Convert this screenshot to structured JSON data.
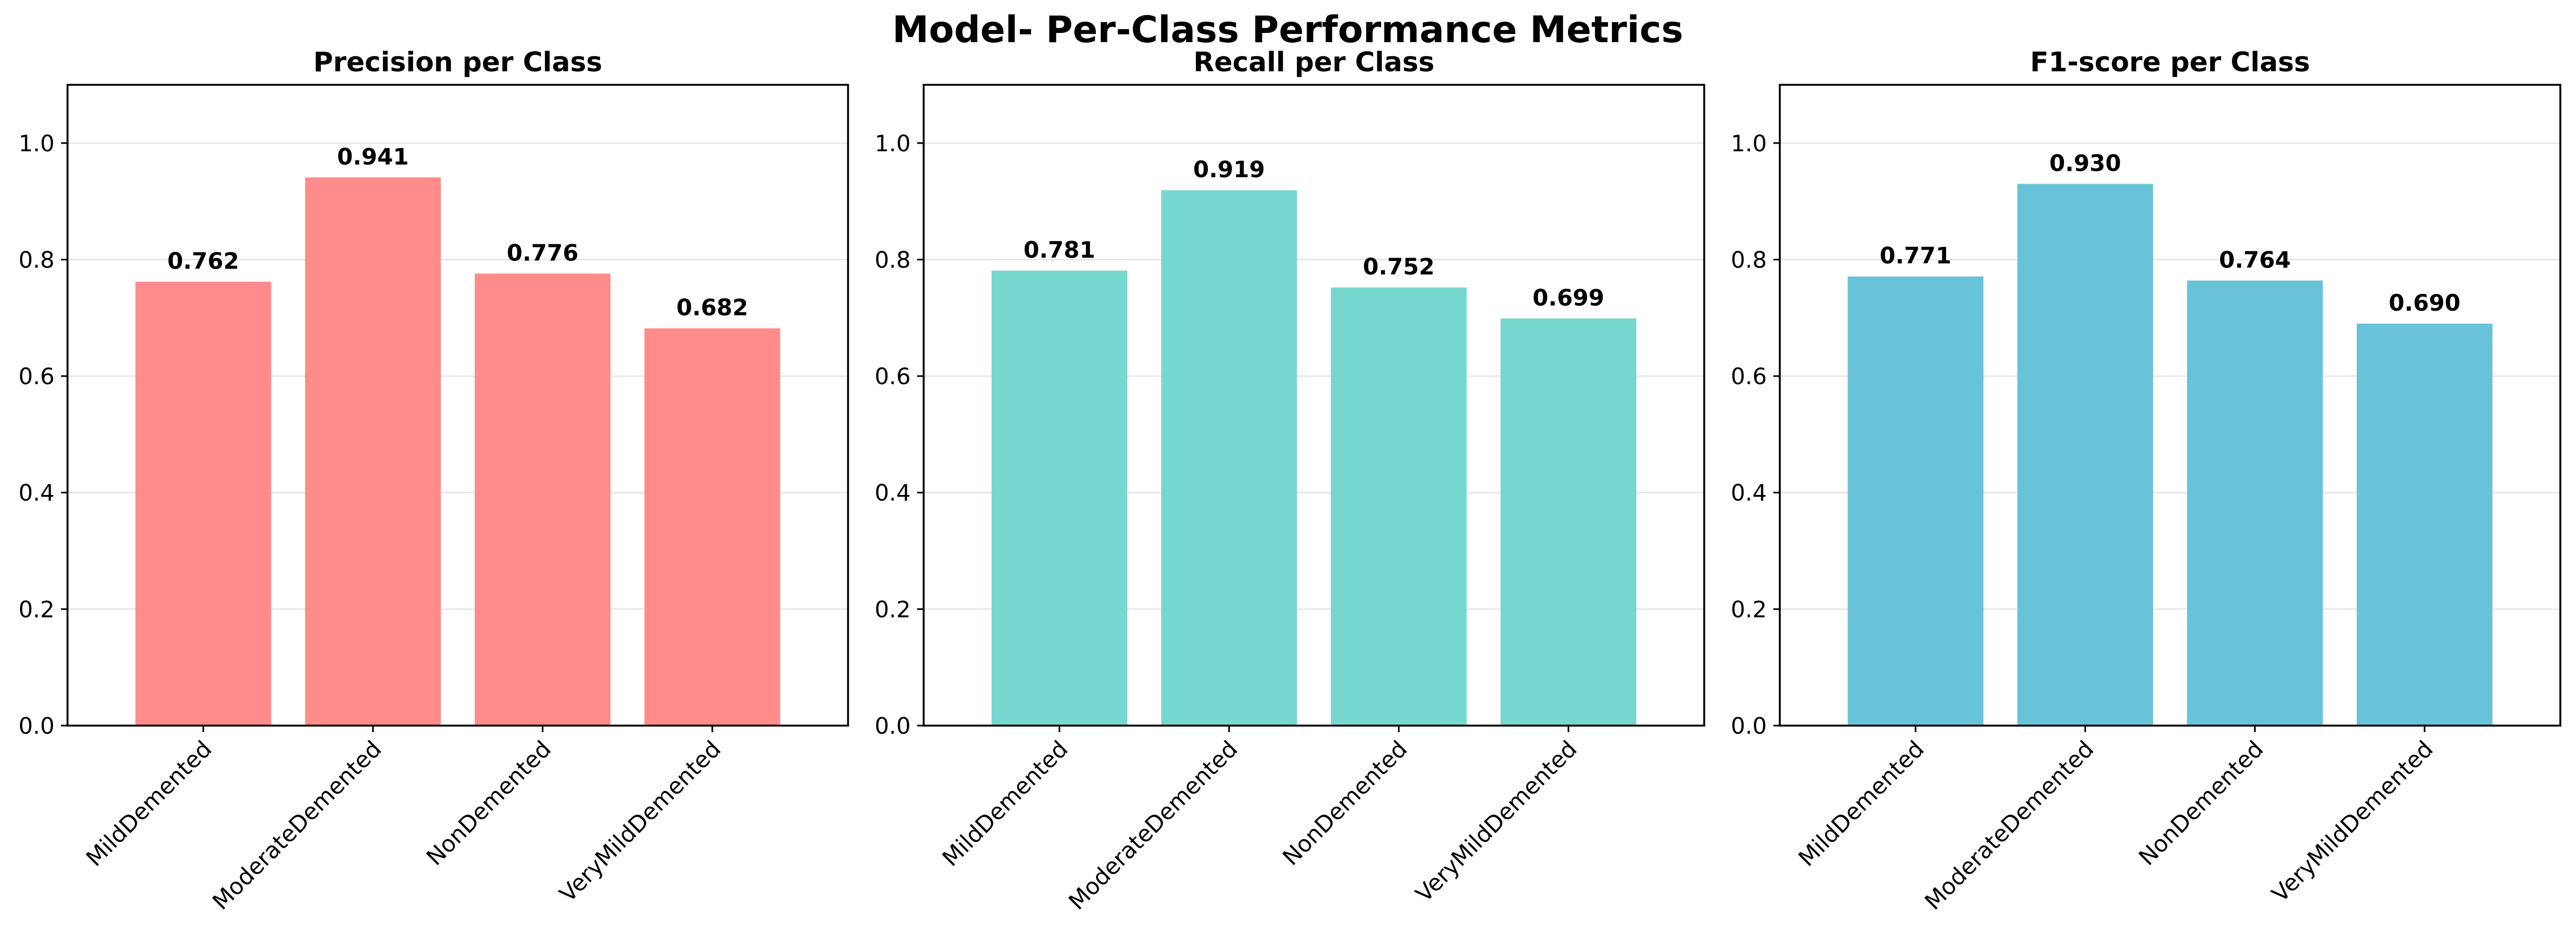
{
  "figure": {
    "title": "Model- Per-Class Performance Metrics"
  },
  "chart_data": [
    {
      "type": "bar",
      "title": "Precision per Class",
      "xlabel": "",
      "ylabel": "",
      "categories": [
        "MildDemented",
        "ModerateDemented",
        "NonDemented",
        "VeryMildDemented"
      ],
      "values": [
        0.762,
        0.941,
        0.776,
        0.682
      ],
      "value_labels": [
        "0.762",
        "0.941",
        "0.776",
        "0.682"
      ],
      "ylim": [
        0,
        1.1
      ],
      "yticks": [
        0.0,
        0.2,
        0.4,
        0.6,
        0.8,
        1.0
      ],
      "ytick_labels": [
        "0.0",
        "0.2",
        "0.4",
        "0.6",
        "0.8",
        "1.0"
      ],
      "grid": "y",
      "color": "#ff8b8b"
    },
    {
      "type": "bar",
      "title": "Recall per Class",
      "xlabel": "",
      "ylabel": "",
      "categories": [
        "MildDemented",
        "ModerateDemented",
        "NonDemented",
        "VeryMildDemented"
      ],
      "values": [
        0.781,
        0.919,
        0.752,
        0.699
      ],
      "value_labels": [
        "0.781",
        "0.919",
        "0.752",
        "0.699"
      ],
      "ylim": [
        0,
        1.1
      ],
      "yticks": [
        0.0,
        0.2,
        0.4,
        0.6,
        0.8,
        1.0
      ],
      "ytick_labels": [
        "0.0",
        "0.2",
        "0.4",
        "0.6",
        "0.8",
        "1.0"
      ],
      "grid": "y",
      "color": "#76d7cf"
    },
    {
      "type": "bar",
      "title": "F1-score per Class",
      "xlabel": "",
      "ylabel": "",
      "categories": [
        "MildDemented",
        "ModerateDemented",
        "NonDemented",
        "VeryMildDemented"
      ],
      "values": [
        0.771,
        0.93,
        0.764,
        0.69
      ],
      "value_labels": [
        "0.771",
        "0.930",
        "0.764",
        "0.690"
      ],
      "ylim": [
        0,
        1.1
      ],
      "yticks": [
        0.0,
        0.2,
        0.4,
        0.6,
        0.8,
        1.0
      ],
      "ytick_labels": [
        "0.0",
        "0.2",
        "0.4",
        "0.6",
        "0.8",
        "1.0"
      ],
      "grid": "y",
      "color": "#69c3d8"
    }
  ]
}
